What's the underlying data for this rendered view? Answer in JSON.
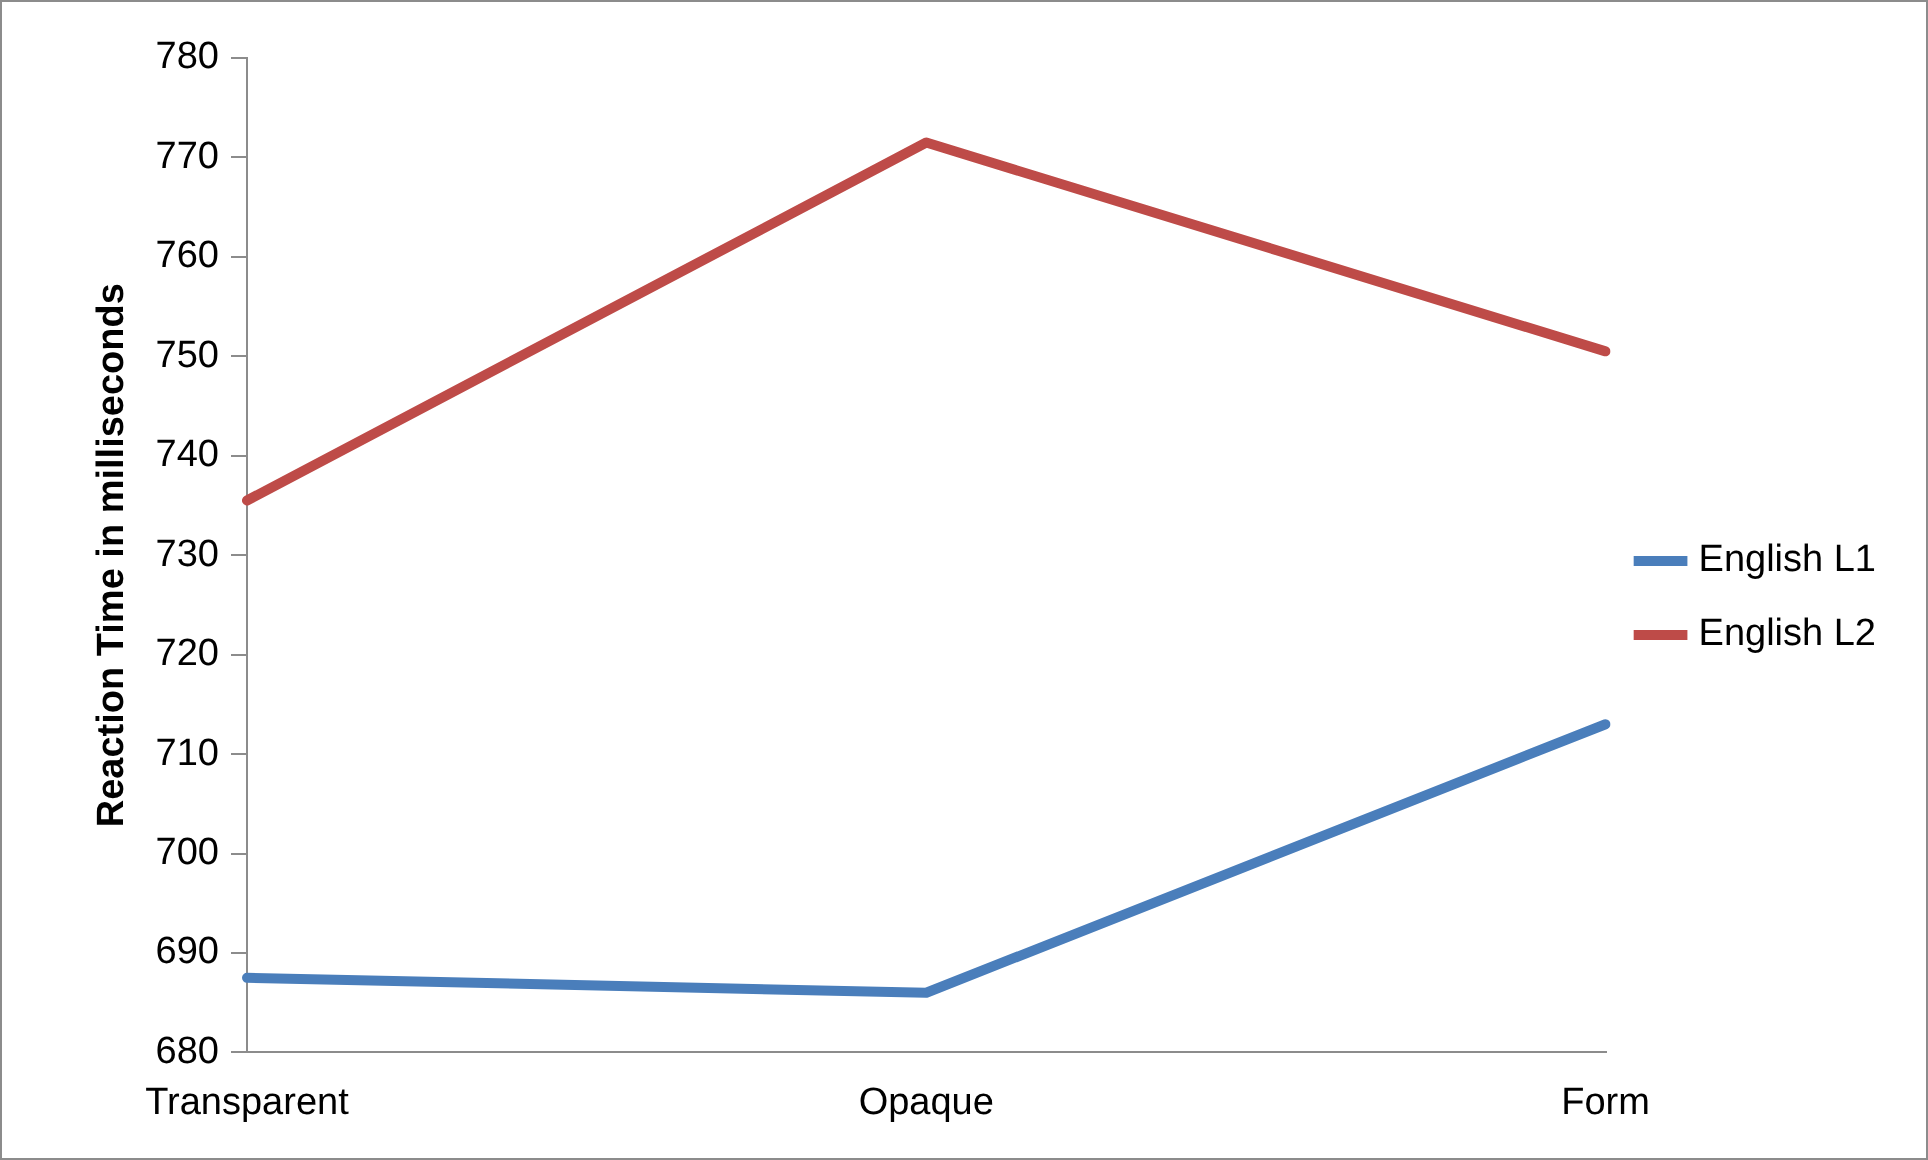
{
  "chart_data": {
    "type": "line",
    "categories": [
      "Transparent",
      "Opaque",
      "Form"
    ],
    "series": [
      {
        "name": "English L1",
        "color": "#4a7ebb",
        "values": [
          687.5,
          686,
          713
        ]
      },
      {
        "name": "English L2",
        "color": "#be4b48",
        "values": [
          735.5,
          771.5,
          750.5
        ]
      }
    ],
    "ylabel": "Reaction Time in milliseconds",
    "ylim": [
      680,
      780
    ],
    "yticks": [
      680,
      690,
      700,
      710,
      720,
      730,
      740,
      750,
      760,
      770,
      780
    ],
    "legend": "right",
    "marker": "none"
  }
}
